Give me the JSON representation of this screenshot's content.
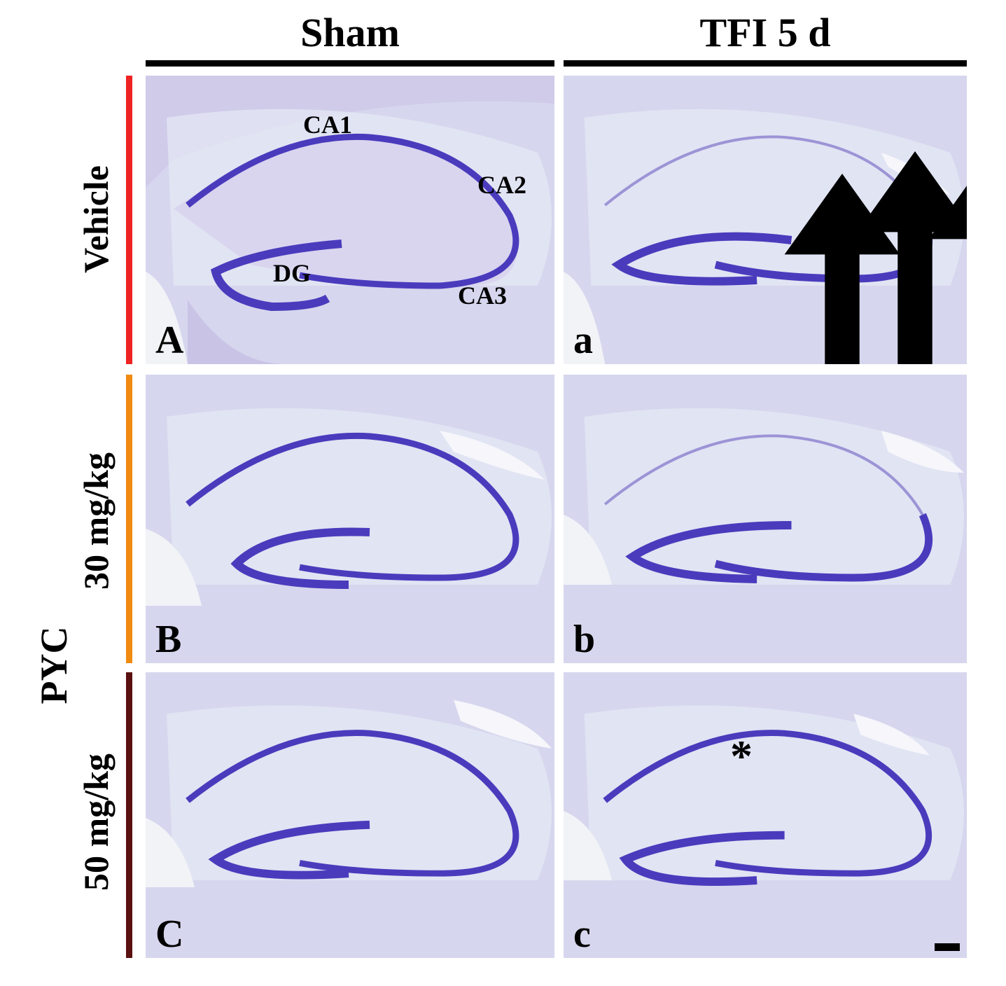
{
  "columns": {
    "left": "Sham",
    "right": "TFI 5 d"
  },
  "rows": {
    "vehicle": "Vehicle",
    "dose30": "30 mg/kg",
    "dose50": "50 mg/kg"
  },
  "group_label": "PYC",
  "row_colors": {
    "vehicle": "#ee2222",
    "dose30": "#f08a10",
    "dose50": "#5a1010"
  },
  "panels": {
    "A": "A",
    "a": "a",
    "B": "B",
    "b": "b",
    "C": "C",
    "c": "c"
  },
  "annotations": {
    "ca1": "CA1",
    "ca2": "CA2",
    "ca3": "CA3",
    "dg": "DG",
    "asterisk": "*"
  },
  "stain_colors": {
    "background": "#d6d6ee",
    "cells": "#4a3bbd",
    "white_matter": "#e8ecf6"
  }
}
